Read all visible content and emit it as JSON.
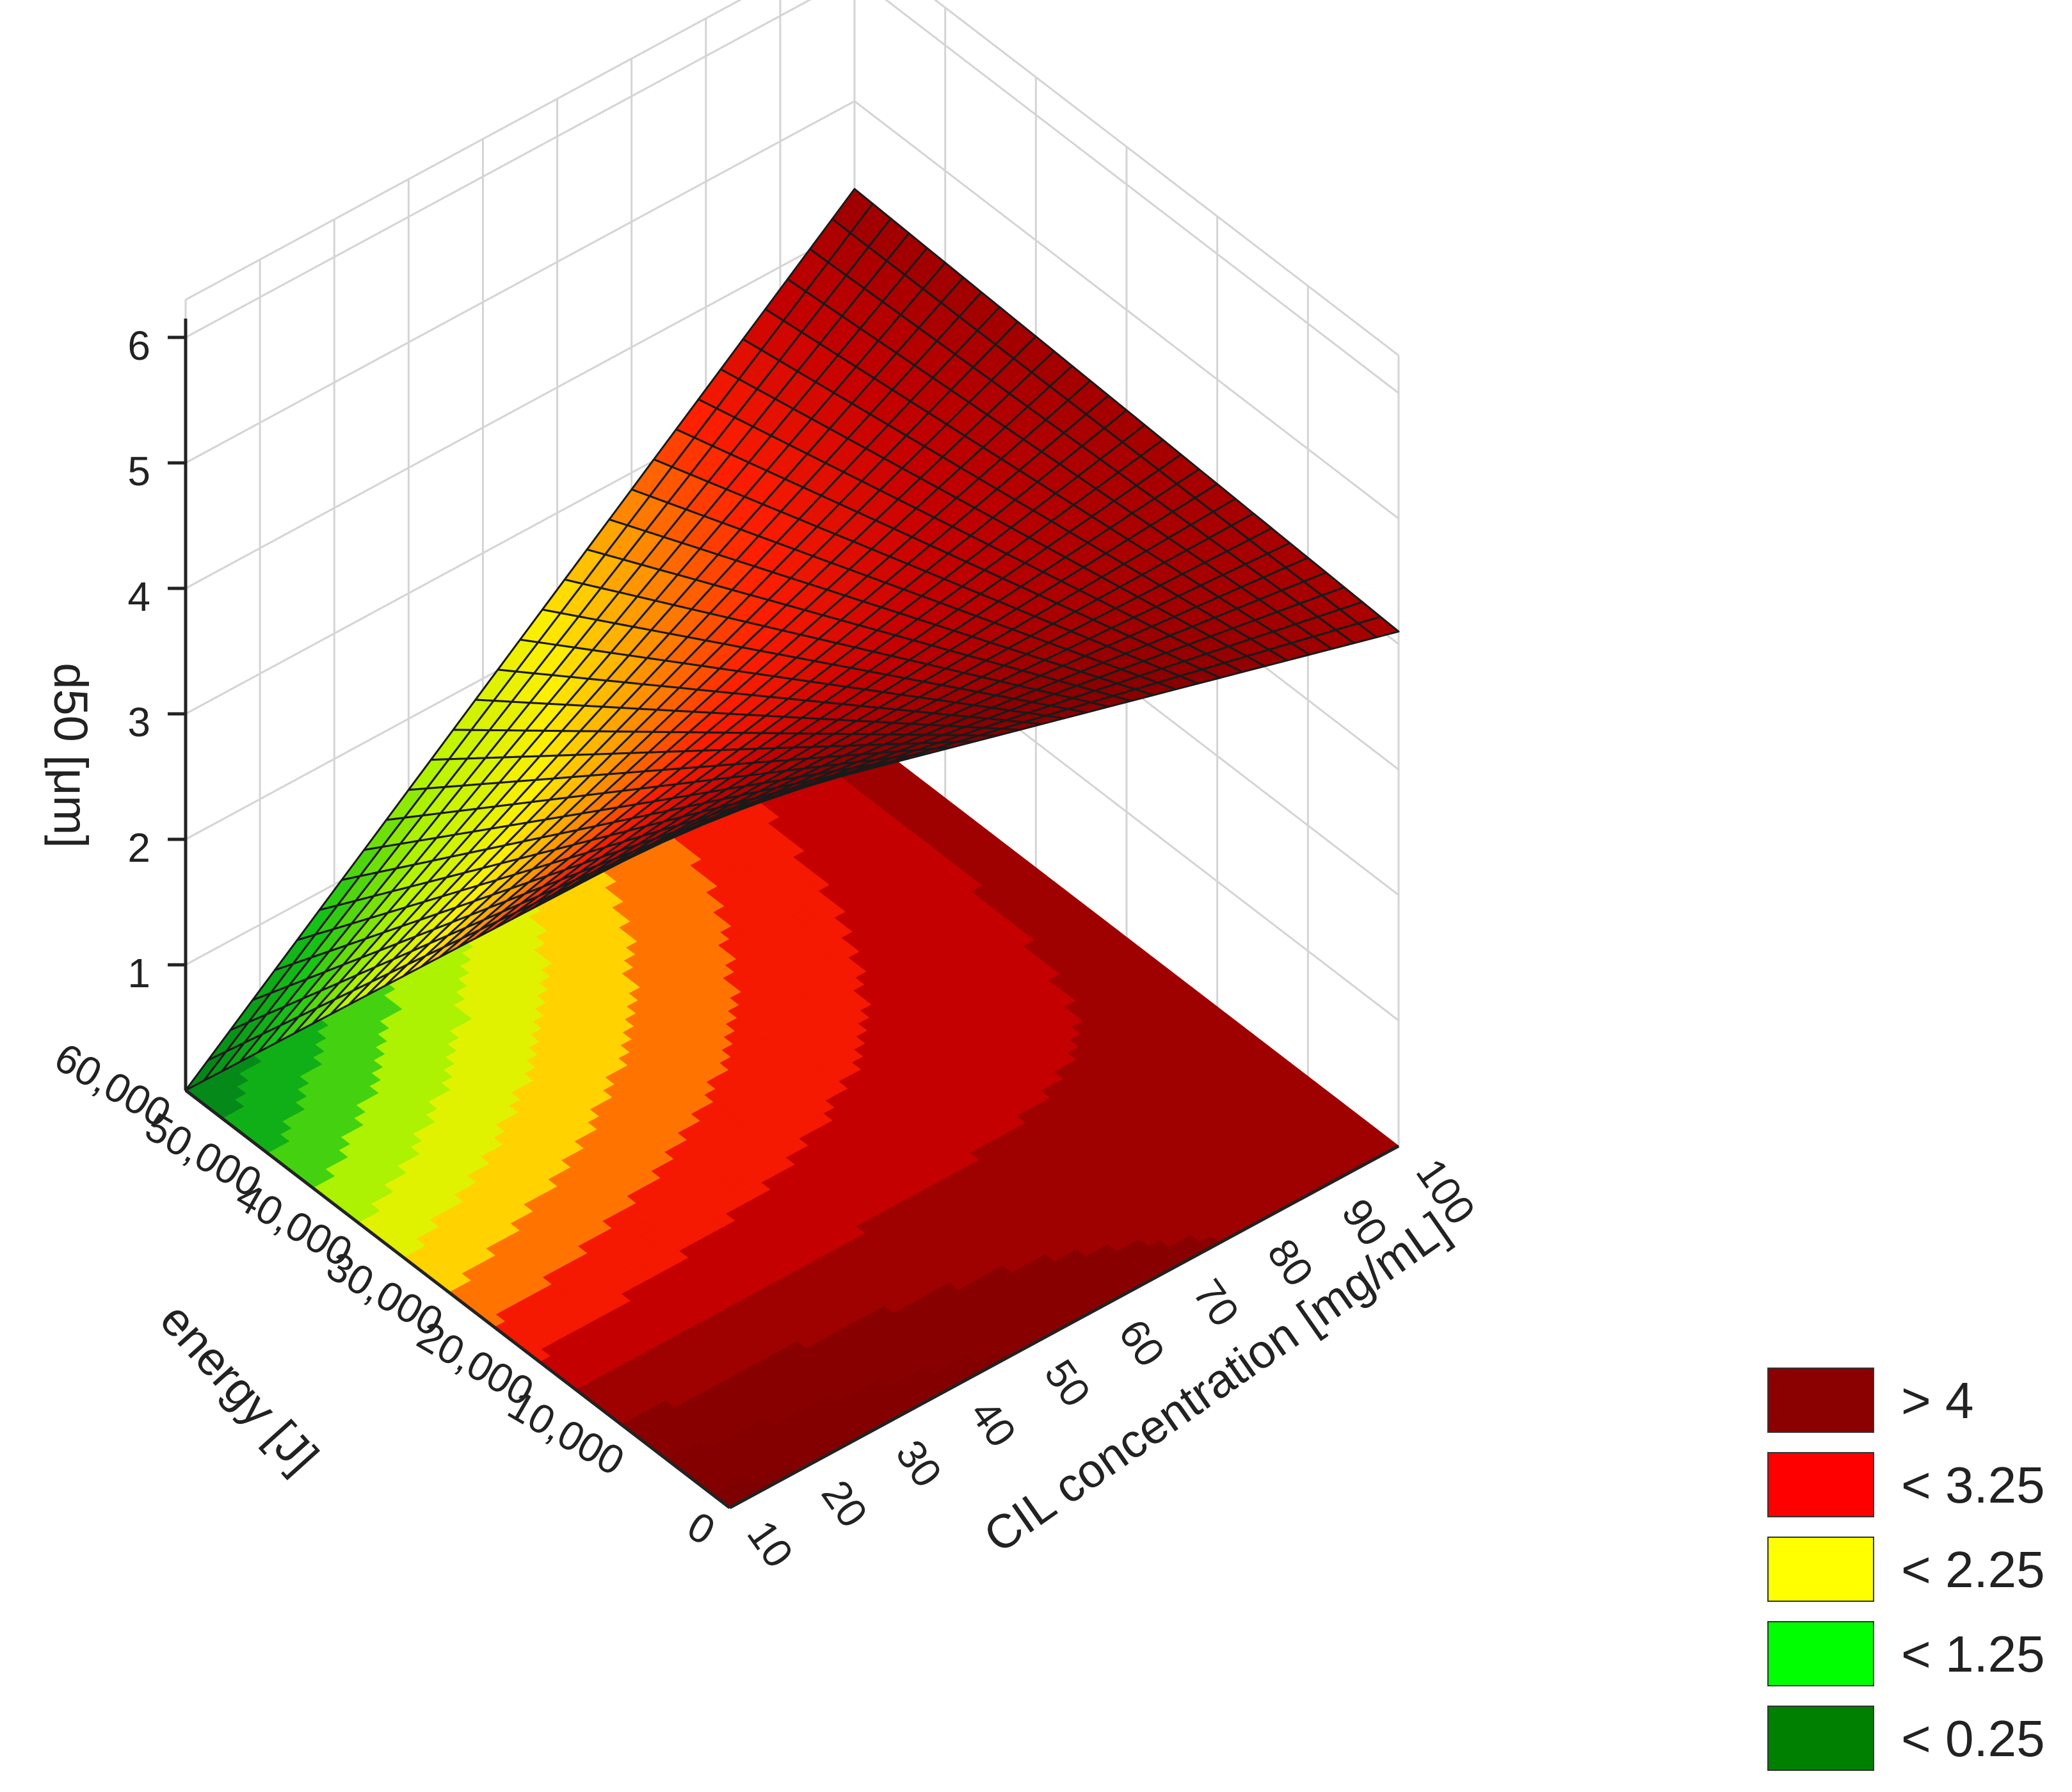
{
  "chart_data": {
    "type": "surface",
    "title": "",
    "zlabel": "d50 [μm]",
    "ylabel": "energy [J]",
    "xlabel": "CIL concentration [mg/mL]",
    "x_ticks": [
      "10",
      "20",
      "30",
      "40",
      "50",
      "60",
      "70",
      "80",
      "90",
      "100"
    ],
    "y_ticks": [
      "0",
      "10,000",
      "20,000",
      "30,000",
      "40,000",
      "50,000",
      "60,000"
    ],
    "z_ticks": [
      "1",
      "2",
      "3",
      "4",
      "5",
      "6"
    ],
    "xlim": [
      10,
      100
    ],
    "ylim": [
      0,
      60000
    ],
    "zlim": [
      0,
      6
    ],
    "grid": true,
    "contour_projection": true,
    "surface_model": "d50 ≈ f(CIL concentration, energy); ~0 at 10 mg/mL & 60,000 J, ~5.6 at 10 mg/mL & 0 J, ~4.1 at 100 mg/mL & 0 J",
    "corner_values": [
      {
        "x": 10,
        "y": 60000,
        "z": 0.0
      },
      {
        "x": 10,
        "y": 0,
        "z": 5.6
      },
      {
        "x": 100,
        "y": 0,
        "z": 4.1
      },
      {
        "x": 100,
        "y": 60000,
        "z": 4.3
      }
    ],
    "legend": [
      {
        "label": "> 4",
        "color": "#8b0000"
      },
      {
        "label": "< 3.25",
        "color": "#ff0000"
      },
      {
        "label": "< 2.25",
        "color": "#ffff00"
      },
      {
        "label": "< 1.25",
        "color": "#00ff00"
      },
      {
        "label": "< 0.25",
        "color": "#008000"
      }
    ],
    "legend_position": "bottom-right"
  }
}
